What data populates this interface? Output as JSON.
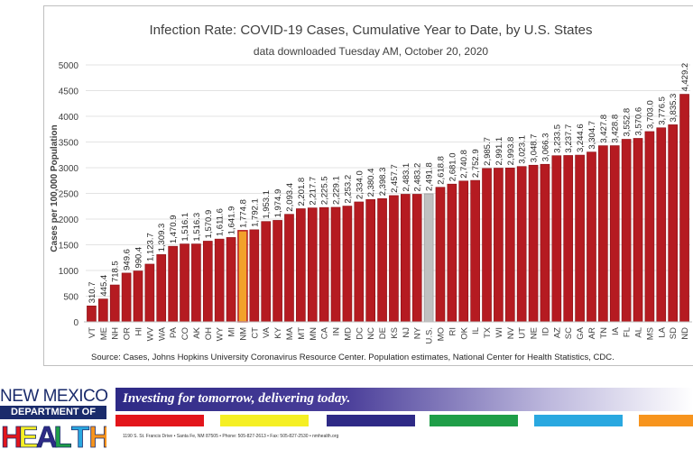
{
  "chart_data": {
    "type": "bar",
    "title": "Infection Rate: COVID-19 Cases, Cumulative Year to Date, by U.S. States",
    "subtitle": "data downloaded Tuesday AM, October 20, 2020",
    "ylabel": "Cases per 100,000 Population",
    "xlabel": "",
    "ylim": [
      0,
      5000
    ],
    "yticks": [
      "0",
      "500",
      "1000",
      "1500",
      "2000",
      "2500",
      "3000",
      "3500",
      "4000",
      "4500",
      "5000"
    ],
    "source": "Source: Cases, Johns Hopkins University Coronavirus Resource Center. Population estimates, National Center for Health Statistics, CDC.",
    "categories": [
      "VT",
      "ME",
      "NH",
      "OR",
      "HI",
      "WV",
      "WA",
      "PA",
      "CO",
      "AK",
      "OH",
      "WY",
      "MI",
      "NM",
      "CT",
      "VA",
      "KY",
      "MA",
      "MT",
      "MN",
      "CA",
      "IN",
      "MD",
      "DC",
      "NC",
      "DE",
      "KS",
      "NJ",
      "NY",
      "U.S.",
      "MO",
      "RI",
      "OK",
      "IL",
      "TX",
      "WI",
      "NV",
      "UT",
      "NE",
      "ID",
      "AZ",
      "SC",
      "GA",
      "AR",
      "TN",
      "IA",
      "FL",
      "AL",
      "MS",
      "LA",
      "SD",
      "ND"
    ],
    "values": [
      310.7,
      445.4,
      718.5,
      949.6,
      990.4,
      1123.7,
      1309.3,
      1470.9,
      1516.1,
      1516.3,
      1570.9,
      1611.6,
      1641.9,
      1774.8,
      1792.1,
      1953.1,
      1974.9,
      2093.4,
      2201.8,
      2217.7,
      2225.5,
      2229.1,
      2253.2,
      2334.0,
      2380.4,
      2398.3,
      2457.7,
      2483.1,
      2483.2,
      2491.8,
      2618.8,
      2681.0,
      2740.8,
      2752.9,
      2985.7,
      2991.1,
      2993.8,
      3023.1,
      3048.7,
      3066.3,
      3233.5,
      3237.7,
      3244.6,
      3304.7,
      3427.8,
      3428.8,
      3552.8,
      3570.6,
      3703.0,
      3776.5,
      3835.3,
      4429.2
    ],
    "labels": [
      "310.7",
      "445.4",
      "718.5",
      "949.6",
      "990.4",
      "1,123.7",
      "1,309.3",
      "1,470.9",
      "1,516.1",
      "1,516.3",
      "1,570.9",
      "1,611.6",
      "1,641.9",
      "1,774.8",
      "1,792.1",
      "1,953.1",
      "1,974.9",
      "2,093.4",
      "2,201.8",
      "2,217.7",
      "2,225.5",
      "2,229.1",
      "2,253.2",
      "2,334.0",
      "2,380.4",
      "2,398.3",
      "2,457.7",
      "2,483.1",
      "2,483.2",
      "2,491.8",
      "2,618.8",
      "2,681.0",
      "2,740.8",
      "2,752.9",
      "2,985.7",
      "2,991.1",
      "2,993.8",
      "3,023.1",
      "3,048.7",
      "3,066.3",
      "3,233.5",
      "3,237.7",
      "3,244.6",
      "3,304.7",
      "3,427.8",
      "3,428.8",
      "3,552.8",
      "3,570.6",
      "3,703.0",
      "3,776.5",
      "3,835.3",
      "4,429.2"
    ],
    "highlight": {
      "NM": "#f2a12b",
      "U.S.": "#c0c0c0"
    },
    "colors": {
      "bar": "#b51b21",
      "bar_outline": "#8a1015",
      "nm_outline": "#b51b21",
      "grid": "#e3e3e3"
    },
    "grid": true,
    "legend": "none"
  },
  "footer": {
    "logo_line1": "NEW MEXICO",
    "logo_line2": "DEPARTMENT OF",
    "logo_word": "HEALTH",
    "tagline": "Investing for tomorrow, delivering today.",
    "address": "1190 S. St. Francis Drive • Santa Fe, NM 87505 • Phone: 505-827-2613 • Fax: 505-827-2530 • nmhealth.org",
    "stripe_colors": [
      "#e3151b",
      "#f5ef24",
      "#2e2a86",
      "#1f9e48",
      "#2aa8e0",
      "#f7941d"
    ],
    "health_letter_colors": [
      "#e3151b",
      "#f5ef24",
      "#2e2a86",
      "#1f9e48",
      "#2aa8e0",
      "#f7941d"
    ]
  }
}
